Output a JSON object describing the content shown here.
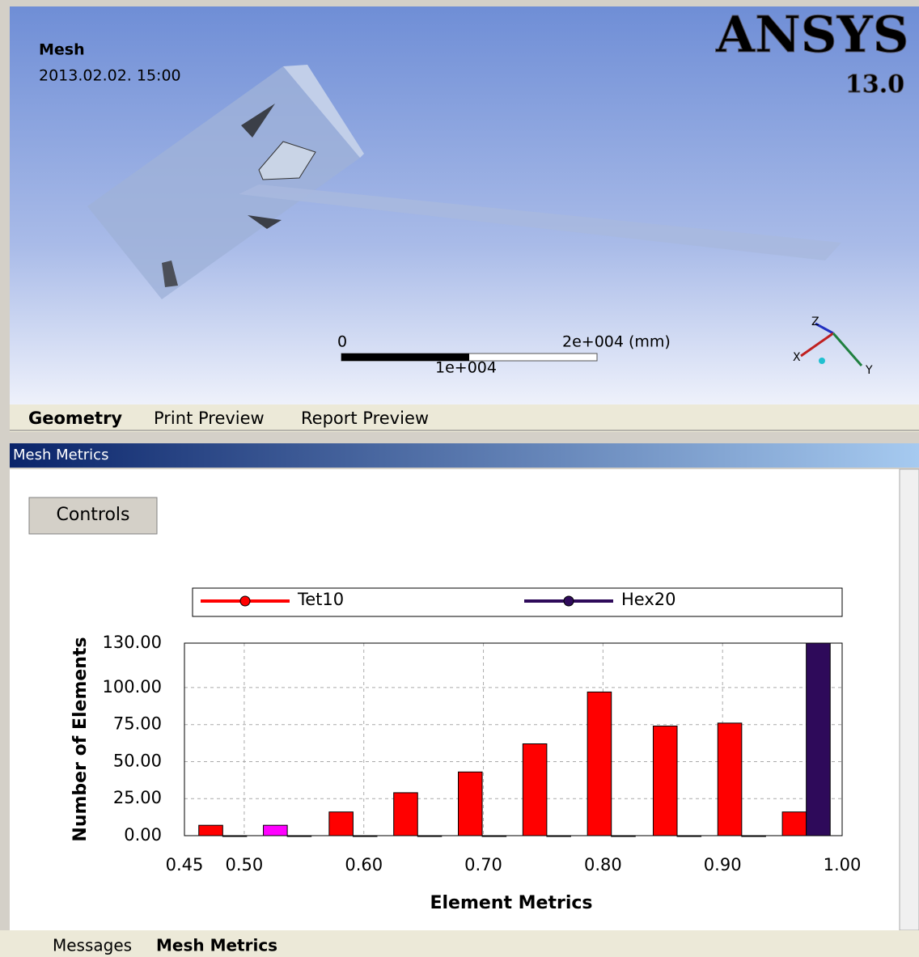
{
  "viewport": {
    "title": "Mesh",
    "date": "2013.02.02. 15:00",
    "logo": "ANSYS",
    "version": "13.0",
    "scale": {
      "start": "0",
      "mid": "1e+004",
      "end": "2e+004 (mm)"
    },
    "axes": [
      "Z",
      "X",
      "Y"
    ]
  },
  "tabs": [
    "Geometry",
    "Print Preview",
    "Report Preview"
  ],
  "panel": {
    "title": "Mesh Metrics",
    "button": "Controls"
  },
  "chart_data": {
    "type": "bar",
    "x_label": "Element Metrics",
    "y_label": "Number of Elements",
    "x": [
      0.482,
      0.536,
      0.591,
      0.645,
      0.699,
      0.753,
      0.807,
      0.862,
      0.916,
      0.97
    ],
    "series": [
      {
        "name": "Tet10",
        "color": "#ff0000",
        "colors": [
          "#ff0000",
          "#ff00ff",
          "#ff0000",
          "#ff0000",
          "#ff0000",
          "#ff0000",
          "#ff0000",
          "#ff0000",
          "#ff0000",
          "#ff0000"
        ],
        "values": [
          7,
          7,
          16,
          29,
          43,
          62,
          97,
          74,
          76,
          16
        ]
      },
      {
        "name": "Hex20",
        "color": "#2e0a5a",
        "values": [
          0,
          0,
          0,
          0,
          0,
          0,
          0,
          0,
          0,
          130
        ]
      }
    ],
    "xlim": [
      0.45,
      1.0
    ],
    "xticks": [
      0.45,
      {
        "value": 0.5,
        "label": "0.50"
      },
      {
        "value": 0.6,
        "label": "0.60"
      },
      {
        "value": 0.7,
        "label": "0.70"
      },
      {
        "value": 0.8,
        "label": "0.80"
      },
      {
        "value": 0.9,
        "label": "0.90"
      },
      {
        "value": 1.0,
        "label": "1.00"
      }
    ],
    "ylim": [
      0,
      130
    ],
    "yticks": [
      {
        "value": 0,
        "label": "0.00"
      },
      {
        "value": 25,
        "label": "25.00"
      },
      {
        "value": 50,
        "label": "50.00"
      },
      {
        "value": 75,
        "label": "75.00"
      },
      {
        "value": 100,
        "label": "100.00"
      },
      {
        "value": 130,
        "label": "130.00"
      }
    ],
    "grid": true
  },
  "bottom_tabs": [
    "Messages",
    "Mesh Metrics"
  ]
}
